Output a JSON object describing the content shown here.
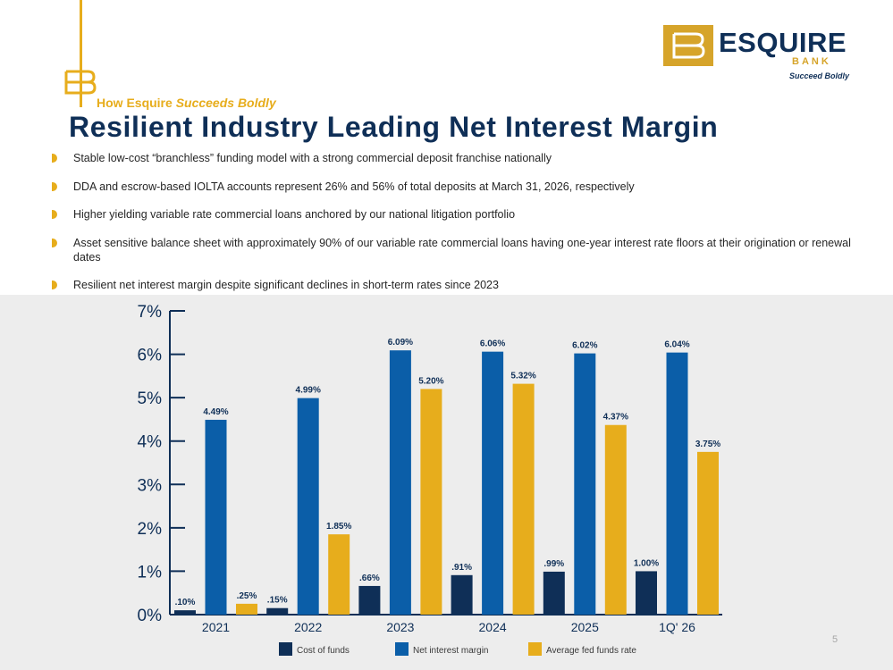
{
  "header": {
    "subtitle_prefix": "How Esquire ",
    "subtitle_emph": "Succeeds Boldly",
    "title": "Resilient Industry Leading Net Interest Margin"
  },
  "logo": {
    "word": "ESQUIRE",
    "bank": "BANK",
    "tagline": "Succeed Boldly",
    "brand_color": "#d6a42a",
    "navy": "#0f2f57"
  },
  "bullets": [
    "Stable low-cost “branchless” funding model with a strong commercial deposit franchise nationally",
    "DDA and escrow-based IOLTA accounts represent 26% and 56% of total deposits at March 31, 2026, respectively",
    "Higher yielding variable rate commercial loans anchored by our national litigation portfolio",
    "Asset sensitive balance sheet with approximately 90% of our variable rate commercial loans having one-year interest rate floors at their origination or renewal dates",
    "Resilient net interest margin despite significant declines in short-term rates since 2023"
  ],
  "page_number": "5",
  "chart_data": {
    "type": "bar",
    "categories": [
      "2021",
      "2022",
      "2023",
      "2024",
      "2025",
      "1Q' 26"
    ],
    "series": [
      {
        "name": "Cost of funds",
        "color": "#0f2f57",
        "values": [
          0.1,
          0.15,
          0.66,
          0.91,
          0.99,
          1.0
        ],
        "labels": [
          ".10%",
          ".15%",
          ".66%",
          ".91%",
          ".99%",
          "1.00%"
        ]
      },
      {
        "name": "Net interest margin",
        "color": "#0b5ea8",
        "values": [
          4.49,
          4.99,
          6.09,
          6.06,
          6.02,
          6.04
        ],
        "labels": [
          "4.49%",
          "4.99%",
          "6.09%",
          "6.06%",
          "6.02%",
          "6.04%"
        ]
      },
      {
        "name": "Average fed funds rate",
        "color": "#e7ad1c",
        "values": [
          0.25,
          1.85,
          5.2,
          5.32,
          4.37,
          3.75
        ],
        "labels": [
          ".25%",
          "1.85%",
          "5.20%",
          "5.32%",
          "4.37%",
          "3.75%"
        ]
      }
    ],
    "yticks": [
      "0%",
      "1%",
      "2%",
      "3%",
      "4%",
      "5%",
      "6%",
      "7%"
    ],
    "ylim": [
      0,
      7
    ],
    "legend_position": "bottom",
    "grid": false
  }
}
